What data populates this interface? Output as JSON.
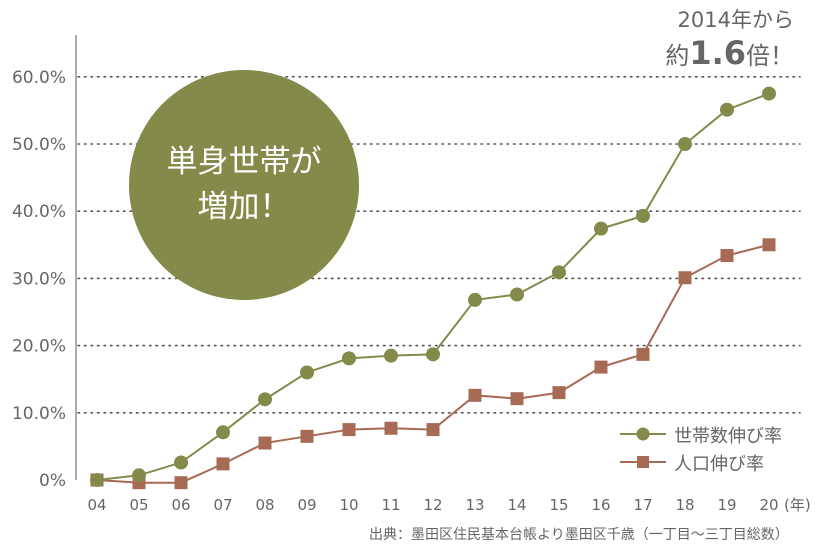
{
  "colors": {
    "green": "#848a4a",
    "red": "#a66a55",
    "grid": "#555555",
    "text": "#666666"
  },
  "callout": {
    "line1": "2014年から",
    "line2_prefix": "約",
    "line2_number": "1.6",
    "line2_suffix": "倍！"
  },
  "circle": {
    "line1": "単身世帯が",
    "line2": "増加！"
  },
  "source": "出典：墨田区住民基本台帳より墨田区千歳（一丁目〜三丁目総数）",
  "x_unit": "(年)",
  "chart_data": {
    "type": "line",
    "categories": [
      "04",
      "05",
      "06",
      "07",
      "08",
      "09",
      "10",
      "11",
      "12",
      "13",
      "14",
      "15",
      "16",
      "17",
      "18",
      "19",
      "20"
    ],
    "ylim": [
      0,
      60
    ],
    "yticks": [
      0,
      10,
      20,
      30,
      40,
      50,
      60
    ],
    "ytick_labels": [
      "0%",
      "10.0%",
      "20.0%",
      "30.0%",
      "40.0%",
      "50.0%",
      "60.0%"
    ],
    "grid": true,
    "legend_position": "bottom-right",
    "series": [
      {
        "name": "世帯数伸び率",
        "marker": "circle",
        "color": "#848a4a",
        "values": [
          0,
          0.7,
          2.6,
          7.1,
          12.0,
          16.0,
          18.1,
          18.5,
          18.7,
          26.8,
          27.6,
          30.9,
          37.4,
          39.3,
          50.0,
          55.1,
          57.5
        ]
      },
      {
        "name": "人口伸び率",
        "marker": "square",
        "color": "#a66a55",
        "values": [
          0,
          -0.4,
          -0.4,
          2.4,
          5.5,
          6.5,
          7.5,
          7.7,
          7.5,
          12.6,
          12.1,
          13.0,
          16.8,
          18.7,
          30.1,
          33.4,
          35.0
        ]
      }
    ]
  }
}
